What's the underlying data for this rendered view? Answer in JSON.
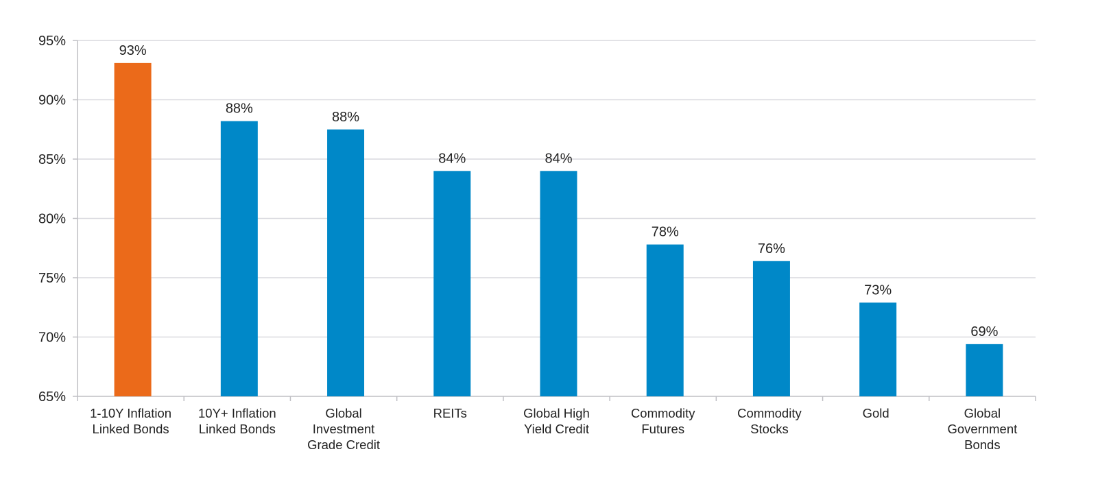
{
  "chart_data": {
    "type": "bar",
    "title": "",
    "xlabel": "",
    "ylabel": "",
    "ylim": [
      65,
      95
    ],
    "yticks": [
      65,
      70,
      75,
      80,
      85,
      90,
      95
    ],
    "ytick_labels": [
      "65%",
      "70%",
      "75%",
      "80%",
      "85%",
      "90%",
      "95%"
    ],
    "grid": true,
    "categories": [
      [
        "1-10Y Inflation",
        "Linked Bonds"
      ],
      [
        "10Y+ Inflation",
        "Linked Bonds"
      ],
      [
        "Global",
        "Investment",
        "Grade Credit"
      ],
      [
        "REITs"
      ],
      [
        "Global High",
        "Yield Credit"
      ],
      [
        "Commodity",
        "Futures"
      ],
      [
        "Commodity",
        "Stocks"
      ],
      [
        "Gold"
      ],
      [
        "Global",
        "Government",
        "Bonds"
      ]
    ],
    "values": [
      93.1,
      88.2,
      87.5,
      84.0,
      84.0,
      77.8,
      76.4,
      72.9,
      69.4
    ],
    "data_labels": [
      "93%",
      "88%",
      "88%",
      "84%",
      "84%",
      "78%",
      "76%",
      "73%",
      "69%"
    ],
    "colors": [
      "#EB6A1A",
      "#0088C8",
      "#0088C8",
      "#0088C8",
      "#0088C8",
      "#0088C8",
      "#0088C8",
      "#0088C8",
      "#0088C8"
    ],
    "highlight_color": "#EB6A1A",
    "bar_color": "#0088C8",
    "grid_color": "#D9D9DE"
  }
}
